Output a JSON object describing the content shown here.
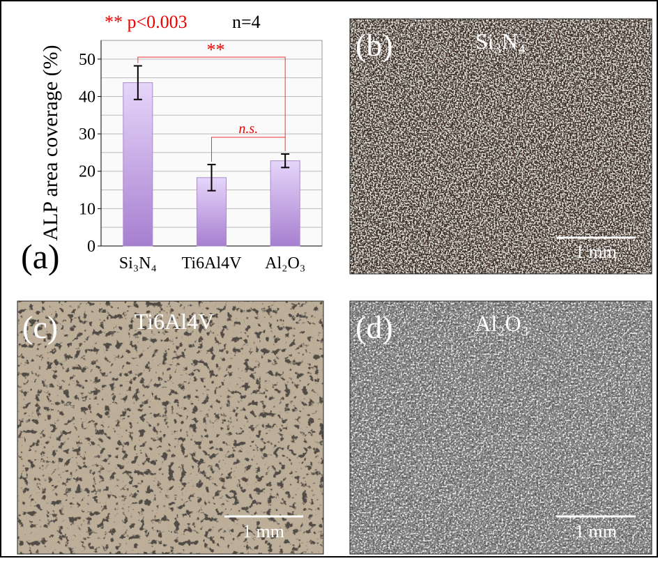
{
  "chart_data": {
    "type": "bar",
    "panel_label": "(a)",
    "y_label": "ALP area coverage (%)",
    "significance_note": "** p<0.003",
    "sample_size_note": "n=4",
    "bracket_labels": [
      "**",
      "n.s."
    ],
    "categories": [
      "Si₃N₄",
      "Ti6Al4V",
      "Al₂O₃"
    ],
    "values": [
      43.7,
      18.3,
      22.8
    ],
    "errors": [
      4.5,
      3.5,
      1.8
    ],
    "color": "#a77fd0",
    "ylim": [
      0,
      55
    ],
    "yticks": [
      0,
      10,
      20,
      30,
      40,
      50
    ],
    "minor_yticks": [
      5,
      15,
      25,
      35,
      45
    ],
    "grid": true
  },
  "images": [
    {
      "label": "(b)",
      "material": "Si₃N₄",
      "scale_bar": "1 mm"
    },
    {
      "label": "(c)",
      "material": "Ti6Al4V",
      "scale_bar": "1 mm"
    },
    {
      "label": "(d)",
      "material": "Al₂O₃",
      "scale_bar": "1 mm"
    }
  ]
}
